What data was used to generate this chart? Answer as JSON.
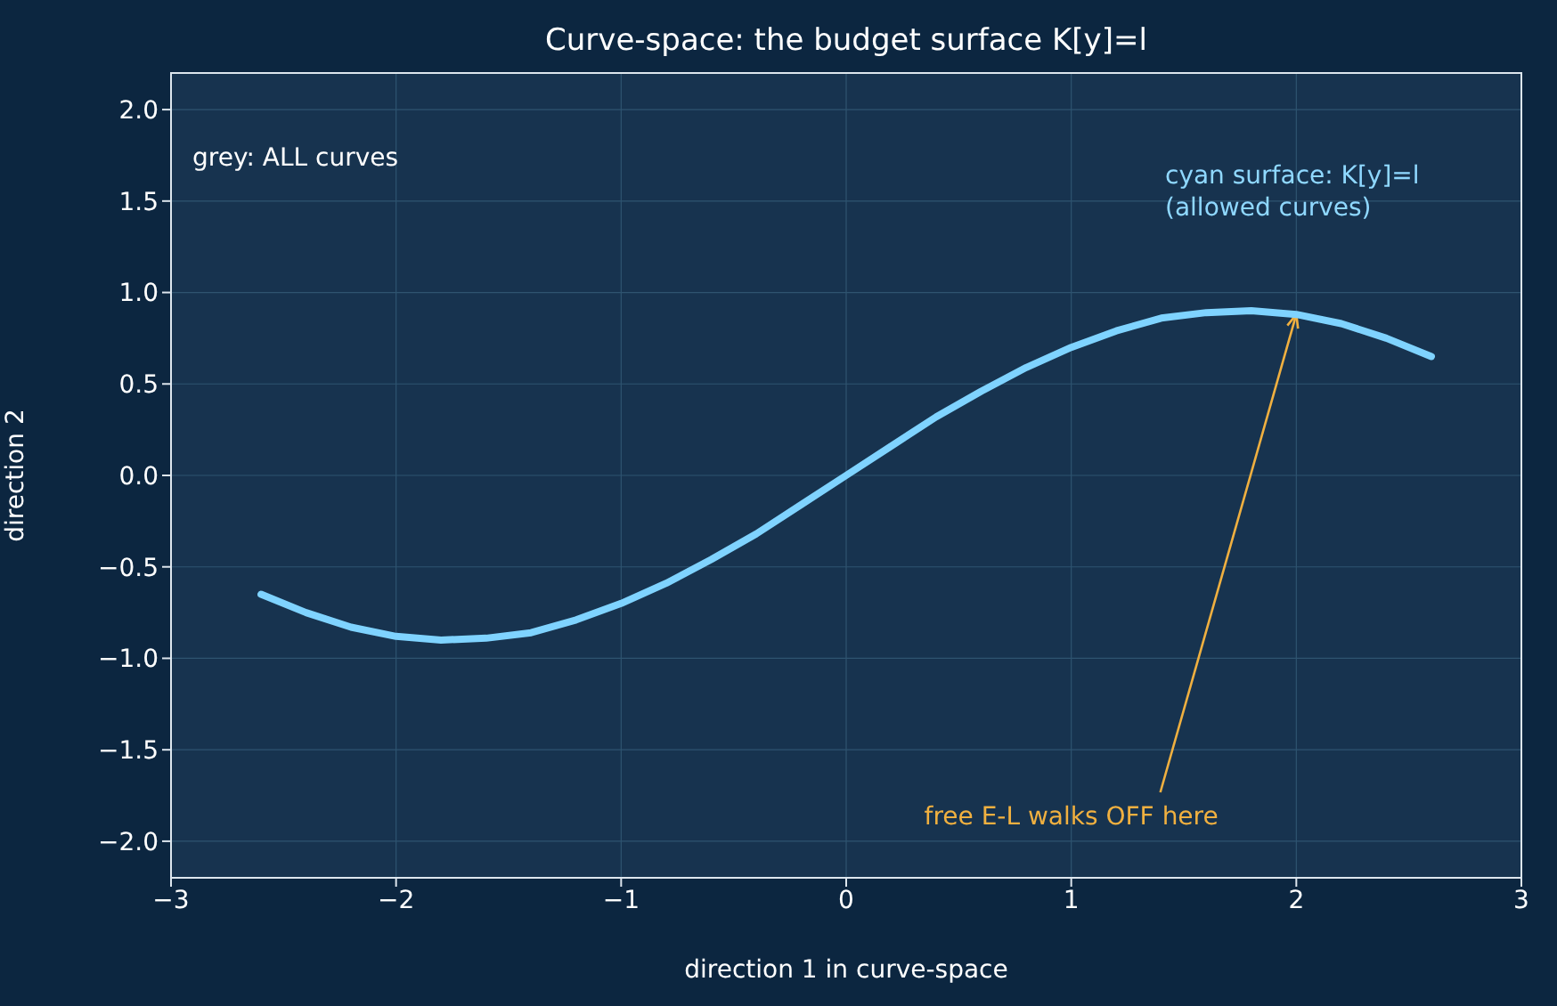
{
  "chart_data": {
    "type": "line",
    "title": "Curve-space: the budget surface K[y]=l",
    "xlabel": "direction 1 in curve-space",
    "ylabel": "direction 2",
    "annotations": [
      "grey: ALL curves",
      "cyan surface: K[y]=l\n(allowed curves)",
      {
        "text": "free E-L walks OFF here",
        "x": 2,
        "y": 0.88
      }
    ],
    "x": [
      -2.6,
      -2.4,
      -2.2,
      -2.0,
      -1.8,
      -1.6,
      -1.4,
      -1.2,
      -1.0,
      -0.8,
      -0.6,
      -0.4,
      -0.2,
      0,
      0.2,
      0.4,
      0.6,
      0.8,
      1.0,
      1.2,
      1.4,
      1.6,
      1.8,
      2.0,
      2.2,
      2.4,
      2.6
    ],
    "series": [
      {
        "color": "#7fd3ff",
        "values": [
          -0.65,
          -0.75,
          -0.83,
          -0.88,
          -0.9,
          -0.89,
          -0.86,
          -0.79,
          -0.7,
          -0.59,
          -0.46,
          -0.32,
          -0.16,
          0,
          0.16,
          0.32,
          0.46,
          0.59,
          0.7,
          0.79,
          0.86,
          0.89,
          0.9,
          0.88,
          0.83,
          0.75,
          0.65
        ]
      }
    ],
    "xlim": [
      -3,
      3
    ],
    "xticks": [
      {
        "value": -3,
        "label": "−3"
      },
      {
        "value": -2,
        "label": "−2"
      },
      {
        "value": -1,
        "label": "−1"
      },
      0,
      1,
      2,
      3
    ],
    "ylim": [
      -2.2,
      2.2
    ],
    "yticks": [
      {
        "value": -2,
        "label": "−2.0"
      },
      {
        "value": -1.5,
        "label": "−1.5"
      },
      {
        "value": -1,
        "label": "−1.0"
      },
      {
        "value": -0.5,
        "label": "−0.5"
      },
      {
        "value": 0,
        "label": "0.0"
      },
      {
        "value": 0.5,
        "label": "0.5"
      },
      {
        "value": 1,
        "label": "1.0"
      },
      {
        "value": 1.5,
        "label": "1.5"
      },
      {
        "value": 2,
        "label": "2.0"
      }
    ],
    "grid": true,
    "legend": false,
    "marker": "none",
    "line_style": "solid"
  }
}
